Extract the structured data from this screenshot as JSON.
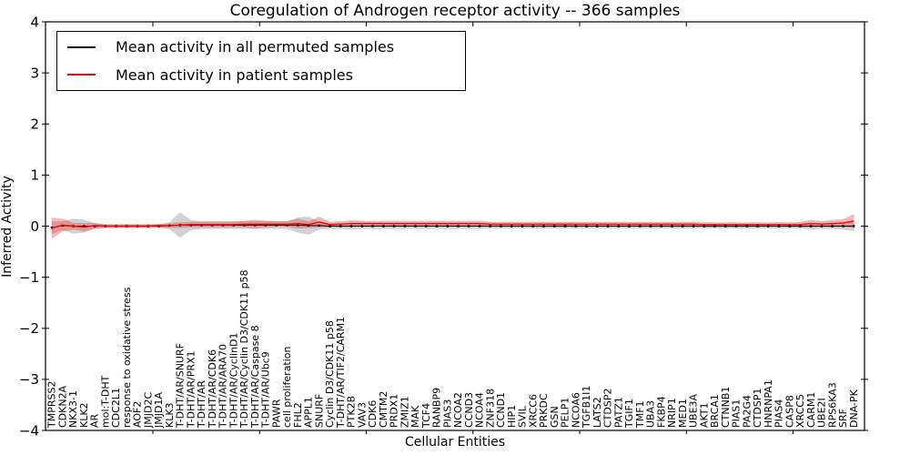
{
  "chart_data": {
    "type": "line",
    "title": "Coregulation of Androgen receptor activity -- 366 samples",
    "xlabel": "Cellular Entities",
    "ylabel": "Inferred Activity",
    "ylim": [
      -4,
      4
    ],
    "ytick_labels": [
      "4",
      "3",
      "2",
      "1",
      "0",
      "−1",
      "−2",
      "−3",
      "−4"
    ],
    "grid": false,
    "legend_position": "upper left",
    "categories": [
      "TMPRSS2",
      "CDKN2A",
      "NKX3-1",
      "KLK2",
      "AR",
      "mol:T-DHT",
      "CDC2L1",
      "response to oxidative stress",
      "AOF2",
      "JMJD2C",
      "JMJD1A",
      "KLK3",
      "T-DHT/AR/SNURF",
      "T-DHT/AR/PRX1",
      "T-DHT/AR",
      "T-DHT/AR/CDK6",
      "T-DHT/AR/ARA70",
      "T-DHT/AR/CyclinD1",
      "T-DHT/AR/Cyclin D3/CDK11 p58",
      "T-DHT/AR/Caspase 8",
      "T-DHT/AR/Ubc9",
      "PAWR",
      "cell proliferation",
      "FHL2",
      "APPL1",
      "SNURF",
      "Cyclin D3/CDK11 p58",
      "T-DHT/AR/TIF2/CARM1",
      "PTK2B",
      "VAV3",
      "CDK6",
      "CMTM2",
      "PRDX1",
      "ZMIZ1",
      "MAK",
      "TCF4",
      "RANBP9",
      "PIAS3",
      "NCOA2",
      "CCND3",
      "NCOA4",
      "ZNF318",
      "CCND1",
      "HIP1",
      "SVIL",
      "XRCC6",
      "PRKDC",
      "GSN",
      "PELP1",
      "NCOA6",
      "TGFB1I1",
      "LATS2",
      "CTDSP2",
      "PATZ1",
      "TGIF1",
      "TMF1",
      "UBA3",
      "FKBP4",
      "NRIP1",
      "MED1",
      "UBE3A",
      "AKT1",
      "BRCA1",
      "CTNNB1",
      "PIAS1",
      "PA2G4",
      "CTDSP1",
      "HNRNPA1",
      "PIAS4",
      "CASP8",
      "XRCC5",
      "CARM1",
      "UBE2I",
      "RPS6KA3",
      "SRF",
      "DNA-PK"
    ],
    "series": [
      {
        "name": "Mean activity in all permuted samples",
        "color": "#000000",
        "band_color": "rgba(128,128,128,0.35)",
        "values": [
          -0.03,
          0.01,
          0,
          0,
          0,
          0,
          0,
          0,
          0,
          0,
          0,
          0.01,
          0.02,
          0.02,
          0.02,
          0.02,
          0.02,
          0.02,
          0.02,
          0.02,
          0.02,
          0.02,
          0.02,
          0.02,
          0.01,
          0.01,
          0,
          0,
          0,
          0,
          0,
          0,
          0,
          0,
          0,
          0,
          0,
          0,
          0,
          0,
          0,
          0,
          0,
          0,
          0,
          0,
          0,
          0,
          0,
          0,
          0,
          0,
          0,
          0,
          0,
          0,
          0,
          0,
          0,
          0,
          0,
          0,
          0,
          0,
          0,
          0,
          0,
          0,
          0,
          0,
          0,
          0,
          0,
          0,
          0,
          0
        ],
        "band_halfwidth": [
          0.12,
          0.08,
          0.14,
          0.12,
          0.05,
          0.03,
          0.03,
          0.03,
          0.03,
          0.03,
          0.03,
          0.06,
          0.24,
          0.09,
          0.07,
          0.07,
          0.07,
          0.07,
          0.07,
          0.07,
          0.07,
          0.07,
          0.07,
          0.14,
          0.17,
          0.07,
          0.05,
          0.05,
          0.06,
          0.05,
          0.05,
          0.05,
          0.05,
          0.05,
          0.05,
          0.05,
          0.05,
          0.05,
          0.05,
          0.05,
          0.05,
          0.04,
          0.04,
          0.04,
          0.04,
          0.04,
          0.04,
          0.04,
          0.04,
          0.04,
          0.04,
          0.04,
          0.04,
          0.04,
          0.04,
          0.04,
          0.04,
          0.04,
          0.04,
          0.04,
          0.04,
          0.04,
          0.04,
          0.04,
          0.04,
          0.04,
          0.04,
          0.04,
          0.04,
          0.04,
          0.04,
          0.06,
          0.05,
          0.05,
          0.06,
          0.09
        ]
      },
      {
        "name": "Mean activity in patient samples",
        "color": "#ff0000",
        "band_color": "rgba(255,0,0,0.28)",
        "values": [
          -0.04,
          0.02,
          0,
          -0.02,
          0.01,
          0,
          0,
          0,
          0,
          0,
          0.01,
          0.01,
          0.02,
          0.03,
          0.03,
          0.03,
          0.03,
          0.03,
          0.04,
          0.04,
          0.04,
          0.04,
          0.04,
          0.05,
          0.03,
          0.08,
          0.03,
          0.04,
          0.05,
          0.05,
          0.05,
          0.05,
          0.05,
          0.05,
          0.05,
          0.05,
          0.05,
          0.05,
          0.05,
          0.05,
          0.05,
          0.04,
          0.04,
          0.04,
          0.04,
          0.04,
          0.04,
          0.04,
          0.04,
          0.04,
          0.04,
          0.04,
          0.04,
          0.04,
          0.04,
          0.04,
          0.04,
          0.04,
          0.04,
          0.04,
          0.04,
          0.03,
          0.03,
          0.03,
          0.03,
          0.03,
          0.03,
          0.03,
          0.03,
          0.03,
          0.03,
          0.05,
          0.04,
          0.05,
          0.06,
          0.1
        ],
        "band_halfwidth": [
          0.2,
          0.12,
          0.06,
          0.08,
          0.05,
          0.03,
          0.03,
          0.03,
          0.03,
          0.03,
          0.03,
          0.04,
          0.05,
          0.05,
          0.05,
          0.05,
          0.05,
          0.05,
          0.06,
          0.08,
          0.06,
          0.05,
          0.05,
          0.09,
          0.06,
          0.1,
          0.05,
          0.05,
          0.06,
          0.05,
          0.05,
          0.05,
          0.05,
          0.05,
          0.05,
          0.05,
          0.05,
          0.05,
          0.05,
          0.05,
          0.05,
          0.04,
          0.04,
          0.04,
          0.04,
          0.04,
          0.04,
          0.04,
          0.04,
          0.04,
          0.04,
          0.04,
          0.04,
          0.04,
          0.04,
          0.04,
          0.04,
          0.04,
          0.04,
          0.04,
          0.04,
          0.04,
          0.04,
          0.04,
          0.04,
          0.04,
          0.04,
          0.04,
          0.04,
          0.04,
          0.05,
          0.07,
          0.05,
          0.07,
          0.07,
          0.13
        ]
      }
    ]
  }
}
